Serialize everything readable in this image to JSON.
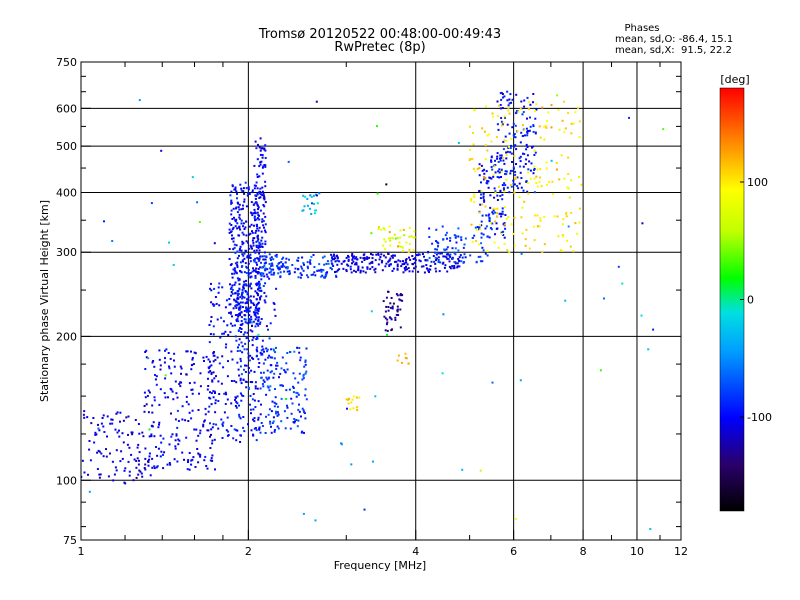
{
  "title": {
    "line1": "Tromsø 20120522 00:48:00-00:49:43",
    "line2": "RwPretec (8p)"
  },
  "phase_box": {
    "heading": "Phases",
    "line_o": "mean, sd,O: -86.4, 15.1",
    "line_x": "mean, sd,X:  91.5, 22.2"
  },
  "colors": {
    "grid": "#000000",
    "background": "#ffffff",
    "colorbar_stops": [
      "#000000",
      "#2a006a",
      "#0000ff",
      "#00a0ff",
      "#00e0e0",
      "#00ff00",
      "#c0ff00",
      "#ffff00",
      "#ff8000",
      "#ff0000"
    ]
  },
  "chart_data": {
    "type": "scatter",
    "title": "Tromsø 20120522 00:48:00-00:49:43",
    "subtitle": "RwPretec (8p)",
    "xlabel": "Frequency [MHz]",
    "ylabel": "Stationary phase Virtual Height [km]",
    "x_scale": "log",
    "y_scale": "log",
    "xlim": [
      1,
      12
    ],
    "ylim": [
      75,
      750
    ],
    "x_ticks": [
      {
        "value": 1,
        "label": "1",
        "grid": true
      },
      {
        "value": 2,
        "label": "2",
        "grid": true
      },
      {
        "value": 4,
        "label": "4",
        "grid": true
      },
      {
        "value": 6,
        "label": "6",
        "grid": true
      },
      {
        "value": 8,
        "label": "8",
        "grid": true
      },
      {
        "value": 10,
        "label": "10",
        "grid": true
      },
      {
        "value": 12,
        "label": "12",
        "grid": false
      }
    ],
    "y_ticks": [
      {
        "value": 75,
        "label": "75",
        "grid": false
      },
      {
        "value": 100,
        "label": "100",
        "grid": true
      },
      {
        "value": 200,
        "label": "200",
        "grid": true
      },
      {
        "value": 300,
        "label": "300",
        "grid": true
      },
      {
        "value": 400,
        "label": "400",
        "grid": true
      },
      {
        "value": 500,
        "label": "500",
        "grid": true
      },
      {
        "value": 600,
        "label": "600",
        "grid": true
      },
      {
        "value": 750,
        "label": "750",
        "grid": false
      }
    ],
    "x_minor_ticks": [
      1.2,
      1.4,
      1.6,
      1.8,
      3,
      5,
      7,
      9,
      11
    ],
    "y_minor_ticks": [
      80,
      90,
      125,
      150,
      175,
      250,
      350,
      450,
      550,
      650,
      700
    ],
    "grid": true,
    "colorbar": {
      "label": "[deg]",
      "min": -180,
      "max": 180,
      "ticks": [
        {
          "value": 100,
          "label": "100"
        },
        {
          "value": 0,
          "label": "0"
        },
        {
          "value": -100,
          "label": "-100"
        }
      ]
    },
    "clusters": [
      {
        "x": [
          1.0,
          1.35
        ],
        "y": [
          98,
          140
        ],
        "n": 110,
        "phase": -110,
        "spread": 15
      },
      {
        "x": [
          1.3,
          1.75
        ],
        "y": [
          105,
          190
        ],
        "n": 220,
        "phase": -105,
        "spread": 18
      },
      {
        "x": [
          1.7,
          2.1
        ],
        "y": [
          120,
          260
        ],
        "n": 230,
        "phase": -100,
        "spread": 20
      },
      {
        "x": [
          1.85,
          2.1
        ],
        "y": [
          210,
          420
        ],
        "n": 320,
        "phase": -100,
        "spread": 20
      },
      {
        "x": [
          2.05,
          2.15
        ],
        "y": [
          230,
          520
        ],
        "n": 130,
        "phase": -100,
        "spread": 20
      },
      {
        "x": [
          1.9,
          2.25
        ],
        "y": [
          160,
          300
        ],
        "n": 140,
        "phase": -90,
        "spread": 25
      },
      {
        "x": [
          2.1,
          2.55
        ],
        "y": [
          125,
          190
        ],
        "n": 150,
        "phase": -85,
        "spread": 25
      },
      {
        "x": [
          2.1,
          2.9
        ],
        "y": [
          265,
          295
        ],
        "n": 130,
        "phase": -80,
        "spread": 25
      },
      {
        "x": [
          2.8,
          4.8
        ],
        "y": [
          272,
          298
        ],
        "n": 220,
        "phase": -110,
        "spread": 15
      },
      {
        "x": [
          4.2,
          5.4
        ],
        "y": [
          285,
          340
        ],
        "n": 90,
        "phase": -80,
        "spread": 20
      },
      {
        "x": [
          5.2,
          5.8
        ],
        "y": [
          320,
          480
        ],
        "n": 110,
        "phase": -95,
        "spread": 20
      },
      {
        "x": [
          5.6,
          6.6
        ],
        "y": [
          400,
          650
        ],
        "n": 150,
        "phase": -95,
        "spread": 25
      },
      {
        "x": [
          5.0,
          8.0
        ],
        "y": [
          300,
          620
        ],
        "n": 200,
        "phase": 100,
        "spread": 25
      },
      {
        "x": [
          3.4,
          4.0
        ],
        "y": [
          300,
          340
        ],
        "n": 40,
        "phase": 90,
        "spread": 40
      },
      {
        "x": [
          3.5,
          3.8
        ],
        "y": [
          205,
          250
        ],
        "n": 45,
        "phase": -130,
        "spread": 15
      },
      {
        "x": [
          2.5,
          2.7
        ],
        "y": [
          360,
          400
        ],
        "n": 20,
        "phase": -30,
        "spread": 40
      },
      {
        "x": [
          3.0,
          3.2
        ],
        "y": [
          140,
          150
        ],
        "n": 14,
        "phase": 105,
        "spread": 15
      },
      {
        "x": [
          3.7,
          3.9
        ],
        "y": [
          175,
          185
        ],
        "n": 8,
        "phase": 120,
        "spread": 15
      },
      {
        "x": [
          1.0,
          12.0
        ],
        "y": [
          75,
          650
        ],
        "n": 70,
        "phase": -40,
        "spread": 110
      }
    ]
  }
}
